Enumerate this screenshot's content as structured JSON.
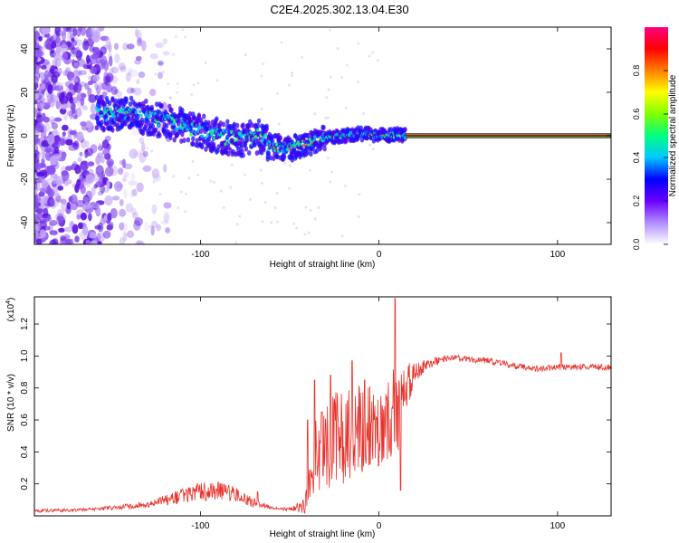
{
  "figure_title": "C2E4.2025.302.13.04.E30",
  "chart_data": [
    {
      "type": "heatmap",
      "xlabel": "Height of straight line (km)",
      "ylabel": "Frequency (Hz)",
      "xlim": [
        -193,
        130
      ],
      "ylim": [
        -50,
        50
      ],
      "x_ticks": [
        -100,
        0,
        100
      ],
      "y_ticks": [
        -40,
        -20,
        0,
        20,
        40
      ],
      "x_tick_labels": [
        "-100",
        "0",
        "100"
      ],
      "y_tick_labels": [
        "-40",
        "-20",
        "0",
        "20",
        "40"
      ],
      "colorbar": {
        "label": "Normalized spectral amplitude",
        "range": [
          0,
          1
        ],
        "ticks": [
          "0.0",
          "0.2",
          "0.4",
          "0.6",
          "0.8"
        ],
        "tick_values": [
          0,
          0.2,
          0.4,
          0.6,
          0.8
        ],
        "colors": [
          "#ffffff",
          "#b08cff",
          "#6a00ff",
          "#0000ff",
          "#00c8ff",
          "#00ff80",
          "#80ff00",
          "#ffff00",
          "#ff8000",
          "#ff0000",
          "#ff0080"
        ]
      },
      "ridge": {
        "description_x": [
          -158,
          -140,
          -120,
          -100,
          -80,
          -66,
          -60,
          -50,
          -40,
          -30,
          -20,
          -10,
          0,
          10,
          15
        ],
        "description_y": [
          10,
          10,
          7,
          2,
          -2,
          0,
          -5,
          -6,
          -4,
          -1,
          0,
          1,
          0,
          0.5,
          0
        ],
        "steady_line_x": [
          15,
          130
        ],
        "steady_line_y": 0
      }
    },
    {
      "type": "line",
      "xlabel": "Height of straight line (km)",
      "ylabel": "SNR (10 * v/v)",
      "y_scale_label": "(x10",
      "y_scale_exponent": "4",
      "y_scale_suffix": ")",
      "xlim": [
        -193,
        130
      ],
      "ylim": [
        0,
        1.37
      ],
      "x_ticks": [
        -100,
        0,
        100
      ],
      "x_tick_labels": [
        "-100",
        "0",
        "100"
      ],
      "y_ticks": [
        0.2,
        0.4,
        0.6,
        0.8,
        1.0,
        1.2
      ],
      "y_tick_labels": [
        "0.2",
        "0.4",
        "0.6",
        "0.8",
        "1.0",
        "1.2"
      ],
      "series_color": "#e8322c",
      "envelope": {
        "x": [
          -193,
          -160,
          -130,
          -115,
          -100,
          -90,
          -80,
          -70,
          -60,
          -50,
          -42,
          -38,
          -35,
          -30,
          -25,
          -20,
          -15,
          -10,
          -5,
          0,
          5,
          10,
          15,
          20,
          30,
          40,
          50,
          60,
          70,
          80,
          90,
          100,
          110,
          120,
          130
        ],
        "y": [
          0.03,
          0.04,
          0.07,
          0.11,
          0.15,
          0.16,
          0.13,
          0.08,
          0.05,
          0.04,
          0.06,
          0.22,
          0.4,
          0.45,
          0.48,
          0.5,
          0.52,
          0.54,
          0.55,
          0.56,
          0.6,
          0.66,
          0.78,
          0.9,
          0.96,
          0.99,
          0.98,
          0.97,
          0.95,
          0.93,
          0.92,
          0.93,
          0.93,
          0.93,
          0.93
        ],
        "noise": [
          0.01,
          0.01,
          0.02,
          0.04,
          0.06,
          0.06,
          0.05,
          0.03,
          0.01,
          0.01,
          0.05,
          0.16,
          0.28,
          0.28,
          0.3,
          0.3,
          0.3,
          0.28,
          0.26,
          0.25,
          0.25,
          0.3,
          0.18,
          0.06,
          0.03,
          0.02,
          0.02,
          0.02,
          0.02,
          0.02,
          0.02,
          0.02,
          0.02,
          0.02,
          0.02
        ]
      },
      "spikes": [
        {
          "x": -68,
          "y": 0.15
        },
        {
          "x": -40,
          "y": 0.6
        },
        {
          "x": -36,
          "y": 0.85
        },
        {
          "x": -32,
          "y": 0.65
        },
        {
          "x": -27,
          "y": 0.88
        },
        {
          "x": -15,
          "y": 0.97
        },
        {
          "x": -8,
          "y": 0.85
        },
        {
          "x": 9,
          "y": 1.36
        },
        {
          "x": 12,
          "y": 0.16
        },
        {
          "x": 102,
          "y": 1.02
        }
      ]
    }
  ]
}
